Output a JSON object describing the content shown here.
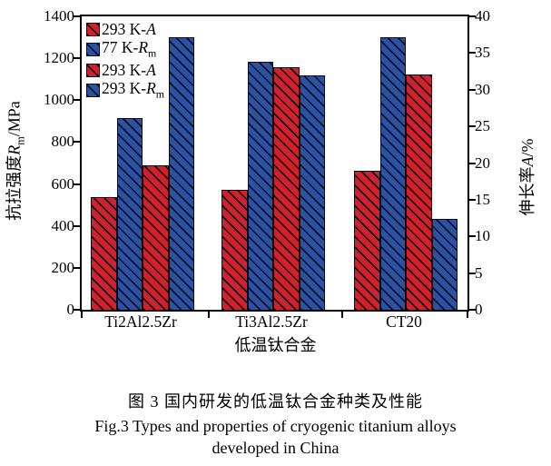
{
  "figure": {
    "caption_zh": "图 3  国内研发的低温钛合金种类及性能",
    "caption_en_line1": "Fig.3 Types and properties of cryogenic titanium alloys",
    "caption_en_line2": "developed in China"
  },
  "chart_data": {
    "type": "bar",
    "title": "",
    "xlabel": "低温钛合金",
    "categories": [
      "Ti2Al2.5Zr",
      "Ti3Al2.5Zr",
      "CT20"
    ],
    "ylabel_left": {
      "zh": "抗拉强度",
      "symbol": "R",
      "symbol_sub": "m",
      "unit": "/MPa"
    },
    "ylabel_right": {
      "zh": "伸长率",
      "symbol": "A",
      "symbol_sub": "",
      "unit": "/%"
    },
    "y_left": {
      "min": 0,
      "max": 1400,
      "step": 200,
      "ticks": [
        0,
        200,
        400,
        600,
        800,
        1000,
        1200,
        1400
      ]
    },
    "y_right": {
      "min": 0,
      "max": 40,
      "step": 5,
      "ticks": [
        0,
        5,
        10,
        15,
        20,
        25,
        30,
        35,
        40
      ]
    },
    "grid": false,
    "legend_position": "top-left-inside",
    "legend": [
      {
        "label": "293 K-A",
        "label_prefix": "293 K-",
        "symbol": "A",
        "symbol_sub": "",
        "color_key": "red"
      },
      {
        "label": "77 K-Rm",
        "label_prefix": "77 K-",
        "symbol": "R",
        "symbol_sub": "m",
        "color_key": "blue"
      },
      {
        "label": "293 K-A",
        "label_prefix": "293 K-",
        "symbol": "A",
        "symbol_sub": "",
        "color_key": "red"
      },
      {
        "label": "293 K-Rm",
        "label_prefix": "293 K-",
        "symbol": "R",
        "symbol_sub": "m",
        "color_key": "blue"
      }
    ],
    "series": [
      {
        "name": "293 K-A",
        "color_key": "red",
        "axis": "right",
        "unit": "%",
        "values": [
          15.3,
          16.3,
          19.0
        ]
      },
      {
        "name": "77 K-Rm",
        "color_key": "blue",
        "axis": "left",
        "unit": "MPa",
        "values": [
          915,
          1185,
          1300
        ]
      },
      {
        "name": "293 K-A",
        "color_key": "red",
        "axis": "right",
        "unit": "%",
        "values": [
          19.7,
          33.1,
          32.1
        ]
      },
      {
        "name": "293 K-Rm",
        "color_key": "blue",
        "axis": "left",
        "unit": "MPa",
        "values": [
          1300,
          1120,
          435
        ]
      }
    ],
    "colors": {
      "red": "#d42026",
      "blue": "#2b52a3",
      "hatch": "#0c1026",
      "axis": "#000000"
    }
  }
}
